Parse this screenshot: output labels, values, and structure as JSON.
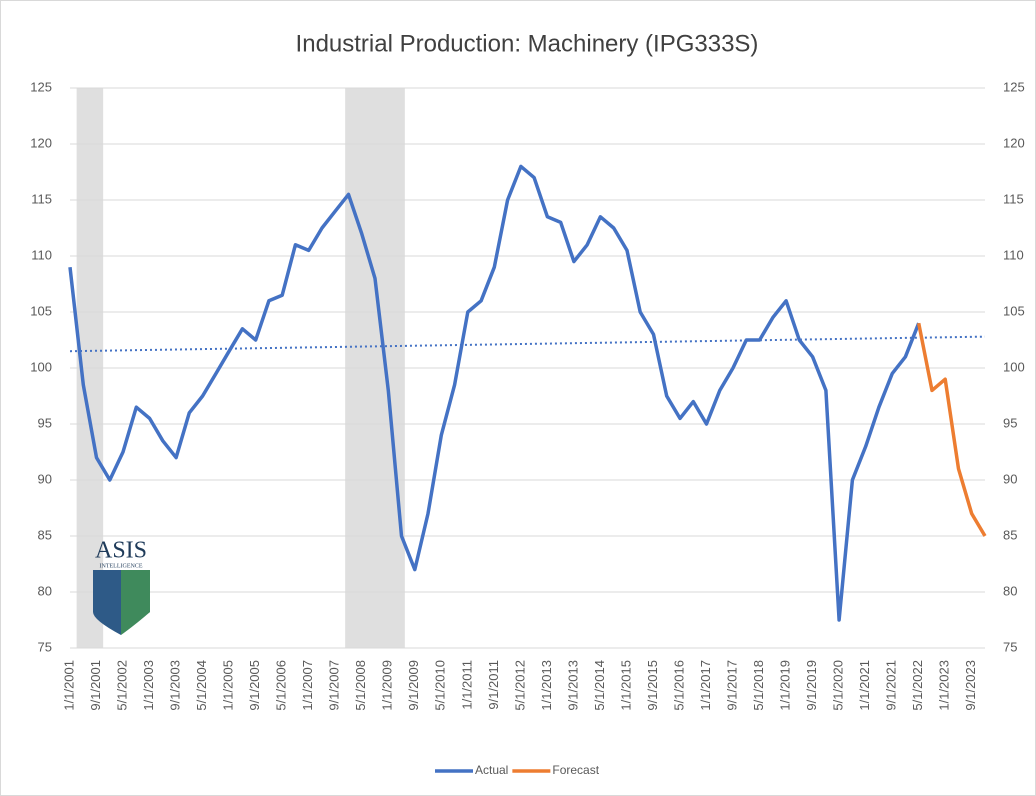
{
  "chart_data": {
    "type": "line",
    "title": "Industrial Production:  Machinery (IPG333S)",
    "logo": {
      "name": "ASIS",
      "subtitle": "INTELLIGENCE"
    },
    "categories": [
      "1/1/2001",
      null,
      "9/1/2001",
      null,
      "5/1/2002",
      null,
      "1/1/2003",
      null,
      "9/1/2003",
      null,
      "5/1/2004",
      null,
      "1/1/2005",
      null,
      "9/1/2005",
      null,
      "5/1/2006",
      null,
      "1/1/2007",
      null,
      "9/1/2007",
      null,
      "5/1/2008",
      null,
      "1/1/2009",
      null,
      "9/1/2009",
      null,
      "5/1/2010",
      null,
      "1/1/2011",
      null,
      "9/1/2011",
      null,
      "5/1/2012",
      null,
      "1/1/2013",
      null,
      "9/1/2013",
      null,
      "5/1/2014",
      null,
      "1/1/2015",
      null,
      "9/1/2015",
      null,
      "5/1/2016",
      null,
      "1/1/2017",
      null,
      "9/1/2017",
      null,
      "5/1/2018",
      null,
      "1/1/2019",
      null,
      "9/1/2019",
      null,
      "5/1/2020",
      null,
      "1/1/2021",
      null,
      "9/1/2021",
      null,
      "5/1/2022",
      null,
      "1/1/2023",
      null,
      "9/1/2023",
      null
    ],
    "series": [
      {
        "name": "Actual",
        "color": "#4472c4",
        "values": [
          109,
          98.5,
          92,
          90,
          92.5,
          96.5,
          95.5,
          93.5,
          92,
          96,
          97.5,
          99.5,
          101.5,
          103.5,
          102.5,
          106,
          106.5,
          111,
          110.5,
          112.5,
          114,
          115.5,
          112,
          108,
          98,
          85,
          82,
          87,
          94,
          98.5,
          105,
          106,
          109,
          115,
          118,
          117,
          113.5,
          113,
          109.5,
          111,
          113.5,
          112.5,
          110.5,
          105,
          103,
          97.5,
          95.5,
          97,
          95,
          98,
          100,
          102.5,
          102.5,
          104.5,
          106,
          102.5,
          101,
          98,
          77.5,
          90,
          93,
          96.5,
          99.5,
          101,
          104,
          null,
          null,
          null,
          null,
          null
        ]
      },
      {
        "name": "Forecast",
        "color": "#ed7d31",
        "values": [
          null,
          null,
          null,
          null,
          null,
          null,
          null,
          null,
          null,
          null,
          null,
          null,
          null,
          null,
          null,
          null,
          null,
          null,
          null,
          null,
          null,
          null,
          null,
          null,
          null,
          null,
          null,
          null,
          null,
          null,
          null,
          null,
          null,
          null,
          null,
          null,
          null,
          null,
          null,
          null,
          null,
          null,
          null,
          null,
          null,
          null,
          null,
          null,
          null,
          null,
          null,
          null,
          null,
          null,
          null,
          null,
          null,
          null,
          null,
          null,
          null,
          null,
          null,
          null,
          104,
          98,
          99,
          91,
          87,
          85
        ]
      }
    ],
    "trend": {
      "color": "#4472c4",
      "values": [
        101.5,
        102.8
      ]
    },
    "shaded_ranges": [
      {
        "start": "3/1/2001",
        "end": "11/1/2001"
      },
      {
        "start": "12/1/2007",
        "end": "6/1/2009"
      }
    ],
    "ylim": [
      75,
      125
    ],
    "yticks": [
      75,
      80,
      85,
      90,
      95,
      100,
      105,
      110,
      115,
      120,
      125
    ],
    "y2lim": [
      75,
      125
    ],
    "y2ticks": [
      75,
      80,
      85,
      90,
      95,
      100,
      105,
      110,
      115,
      120,
      125
    ],
    "grid": true,
    "legend": "bottom"
  }
}
